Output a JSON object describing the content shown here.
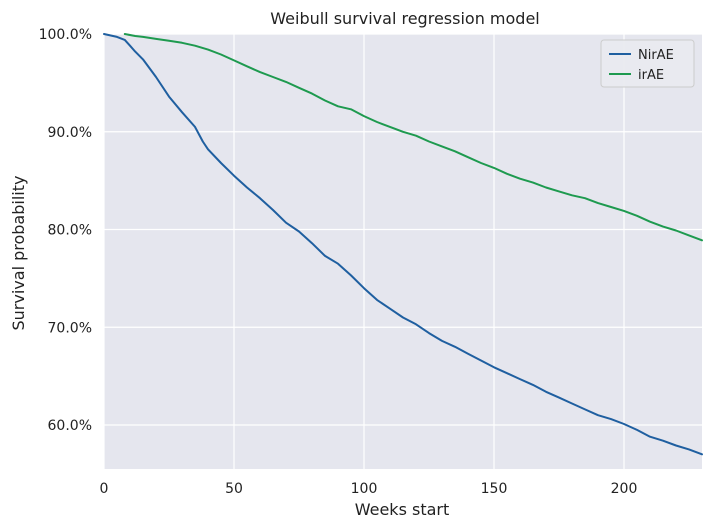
{
  "chart_data": {
    "type": "line",
    "title": "Weibull survival regression model",
    "xlabel": "Weeks start",
    "ylabel": "Survival probability",
    "xlim": [
      0,
      230
    ],
    "ylim": [
      55.5,
      100.0
    ],
    "xticks": [
      0,
      50,
      100,
      150,
      200
    ],
    "yticks": [
      60,
      70,
      80,
      90,
      100
    ],
    "ytick_labels": [
      "60.0%",
      "70.0%",
      "80.0%",
      "90.0%",
      "100.0%"
    ],
    "grid": true,
    "legend_position": "top-right",
    "background_color": "#e5e6ee",
    "grid_color": "#ffffff",
    "series": [
      {
        "name": "NirAE",
        "color": "#1f5fa0",
        "x": [
          0,
          5,
          8,
          10,
          12,
          15,
          20,
          25,
          30,
          35,
          38,
          40,
          45,
          50,
          55,
          60,
          65,
          70,
          75,
          80,
          85,
          90,
          95,
          100,
          105,
          110,
          115,
          120,
          125,
          130,
          135,
          140,
          145,
          150,
          155,
          160,
          165,
          170,
          175,
          180,
          185,
          190,
          195,
          200,
          205,
          210,
          215,
          220,
          225,
          230
        ],
        "y": [
          100.0,
          99.7,
          99.4,
          98.8,
          98.2,
          97.4,
          95.6,
          93.6,
          92.0,
          90.5,
          89.0,
          88.2,
          86.8,
          85.5,
          84.3,
          83.2,
          82.0,
          80.7,
          79.8,
          78.6,
          77.3,
          76.5,
          75.3,
          74.0,
          72.8,
          71.9,
          71.0,
          70.3,
          69.4,
          68.6,
          68.0,
          67.3,
          66.6,
          65.9,
          65.3,
          64.7,
          64.1,
          63.4,
          62.8,
          62.2,
          61.6,
          61.0,
          60.6,
          60.1,
          59.5,
          58.8,
          58.4,
          57.9,
          57.5,
          57.0
        ]
      },
      {
        "name": "irAE",
        "color": "#1e9a4f",
        "x": [
          8,
          12,
          15,
          20,
          25,
          30,
          35,
          40,
          45,
          50,
          55,
          60,
          65,
          70,
          75,
          80,
          85,
          90,
          95,
          100,
          105,
          110,
          115,
          120,
          125,
          130,
          135,
          140,
          145,
          150,
          155,
          160,
          165,
          170,
          175,
          180,
          185,
          190,
          195,
          200,
          205,
          210,
          215,
          220,
          225,
          230
        ],
        "y": [
          100.0,
          99.8,
          99.7,
          99.5,
          99.3,
          99.1,
          98.8,
          98.4,
          97.9,
          97.3,
          96.7,
          96.1,
          95.6,
          95.1,
          94.5,
          93.9,
          93.2,
          92.6,
          92.3,
          91.6,
          91.0,
          90.5,
          90.0,
          89.6,
          89.0,
          88.5,
          88.0,
          87.4,
          86.8,
          86.3,
          85.7,
          85.2,
          84.8,
          84.3,
          83.9,
          83.5,
          83.2,
          82.7,
          82.3,
          81.9,
          81.4,
          80.8,
          80.3,
          79.9,
          79.4,
          78.9
        ]
      }
    ]
  }
}
